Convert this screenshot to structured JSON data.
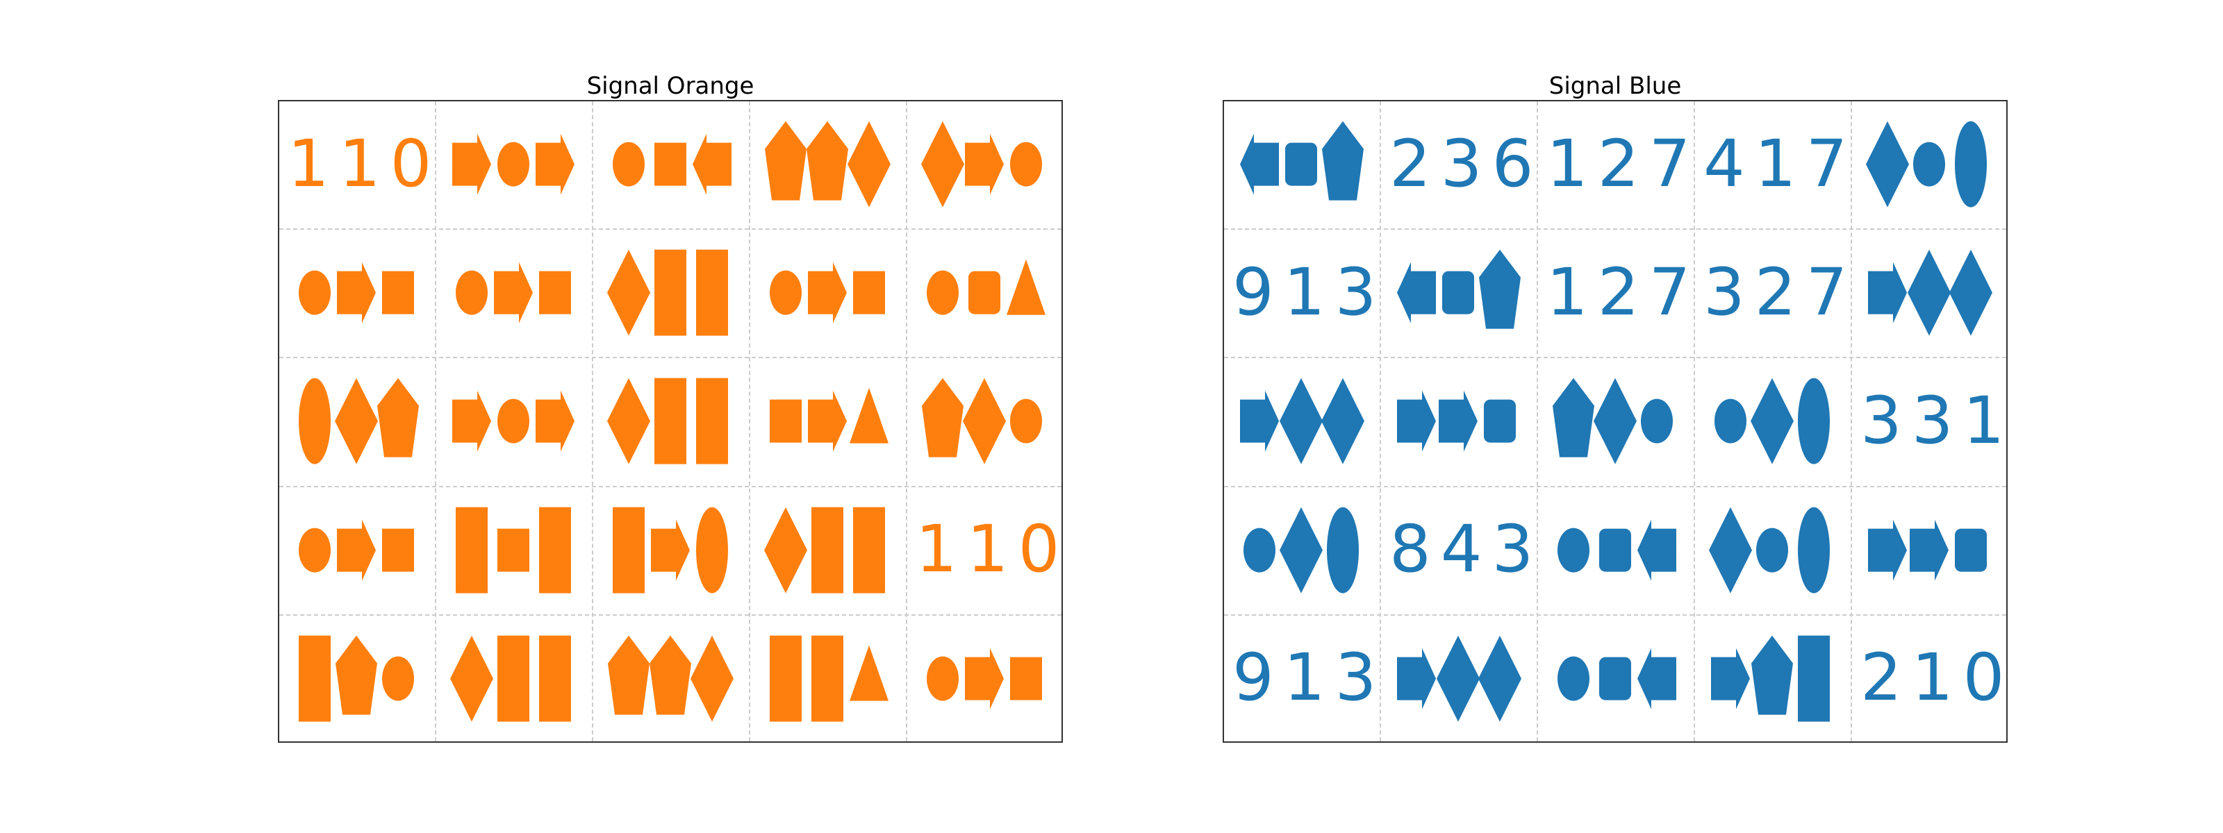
{
  "panels": [
    {
      "title": "Signal Orange",
      "color": "#ff7f0e",
      "cells": [
        [
          {
            "number": "110"
          },
          {
            "shapes": [
              "arrow-right",
              "ellipse",
              "arrow-right"
            ]
          },
          {
            "shapes": [
              "ellipse",
              "square",
              "arrow-left"
            ]
          },
          {
            "shapes": [
              "pentagon",
              "pentagon",
              "diamond"
            ]
          },
          {
            "shapes": [
              "diamond",
              "arrow-right",
              "ellipse"
            ]
          }
        ],
        [
          {
            "shapes": [
              "ellipse",
              "arrow-right",
              "square"
            ]
          },
          {
            "shapes": [
              "ellipse",
              "arrow-right",
              "square"
            ]
          },
          {
            "shapes": [
              "diamond",
              "rect-tall",
              "rect-tall"
            ]
          },
          {
            "shapes": [
              "ellipse",
              "arrow-right",
              "square"
            ]
          },
          {
            "shapes": [
              "ellipse",
              "rounded-square",
              "triangle"
            ]
          }
        ],
        [
          {
            "shapes": [
              "ellipse-tall",
              "diamond",
              "pentagon"
            ]
          },
          {
            "shapes": [
              "arrow-right",
              "ellipse",
              "arrow-right"
            ]
          },
          {
            "shapes": [
              "diamond",
              "rect-tall",
              "rect-tall"
            ]
          },
          {
            "shapes": [
              "square",
              "arrow-right",
              "triangle"
            ]
          },
          {
            "shapes": [
              "pentagon",
              "diamond",
              "ellipse"
            ]
          }
        ],
        [
          {
            "shapes": [
              "ellipse",
              "arrow-right",
              "square"
            ]
          },
          {
            "shapes": [
              "rect-tall",
              "square",
              "rect-tall"
            ]
          },
          {
            "shapes": [
              "rect-tall",
              "arrow-right",
              "ellipse-tall"
            ]
          },
          {
            "shapes": [
              "diamond",
              "rect-tall",
              "rect-tall"
            ]
          },
          {
            "number": "110"
          }
        ],
        [
          {
            "shapes": [
              "rect-tall",
              "pentagon",
              "ellipse"
            ]
          },
          {
            "shapes": [
              "diamond",
              "rect-tall",
              "rect-tall"
            ]
          },
          {
            "shapes": [
              "pentagon",
              "pentagon",
              "diamond"
            ]
          },
          {
            "shapes": [
              "rect-tall",
              "rect-tall",
              "triangle"
            ]
          },
          {
            "shapes": [
              "ellipse",
              "arrow-right",
              "square"
            ]
          }
        ]
      ]
    },
    {
      "title": "Signal Blue",
      "color": "#1f77b4",
      "cells": [
        [
          {
            "shapes": [
              "arrow-left",
              "rounded-square",
              "pentagon"
            ]
          },
          {
            "number": "236"
          },
          {
            "number": "127"
          },
          {
            "number": "417"
          },
          {
            "shapes": [
              "diamond",
              "ellipse",
              "ellipse-tall"
            ]
          }
        ],
        [
          {
            "number": "913"
          },
          {
            "shapes": [
              "arrow-left",
              "rounded-square",
              "pentagon"
            ]
          },
          {
            "number": "127"
          },
          {
            "number": "327"
          },
          {
            "shapes": [
              "arrow-right",
              "diamond",
              "diamond"
            ]
          }
        ],
        [
          {
            "shapes": [
              "arrow-right",
              "diamond",
              "diamond"
            ]
          },
          {
            "shapes": [
              "arrow-right",
              "arrow-right",
              "rounded-square"
            ]
          },
          {
            "shapes": [
              "pentagon",
              "diamond",
              "ellipse"
            ]
          },
          {
            "shapes": [
              "ellipse",
              "diamond",
              "ellipse-tall"
            ]
          },
          {
            "number": "331"
          }
        ],
        [
          {
            "shapes": [
              "ellipse",
              "diamond",
              "ellipse-tall"
            ]
          },
          {
            "number": "843"
          },
          {
            "shapes": [
              "ellipse",
              "rounded-square",
              "arrow-left"
            ]
          },
          {
            "shapes": [
              "diamond",
              "ellipse",
              "ellipse-tall"
            ]
          },
          {
            "shapes": [
              "arrow-right",
              "arrow-right",
              "rounded-square"
            ]
          }
        ],
        [
          {
            "number": "913"
          },
          {
            "shapes": [
              "arrow-right",
              "diamond",
              "diamond"
            ]
          },
          {
            "shapes": [
              "ellipse",
              "rounded-square",
              "arrow-left"
            ]
          },
          {
            "shapes": [
              "arrow-right",
              "pentagon",
              "rect-tall"
            ]
          },
          {
            "number": "210"
          }
        ]
      ]
    }
  ]
}
